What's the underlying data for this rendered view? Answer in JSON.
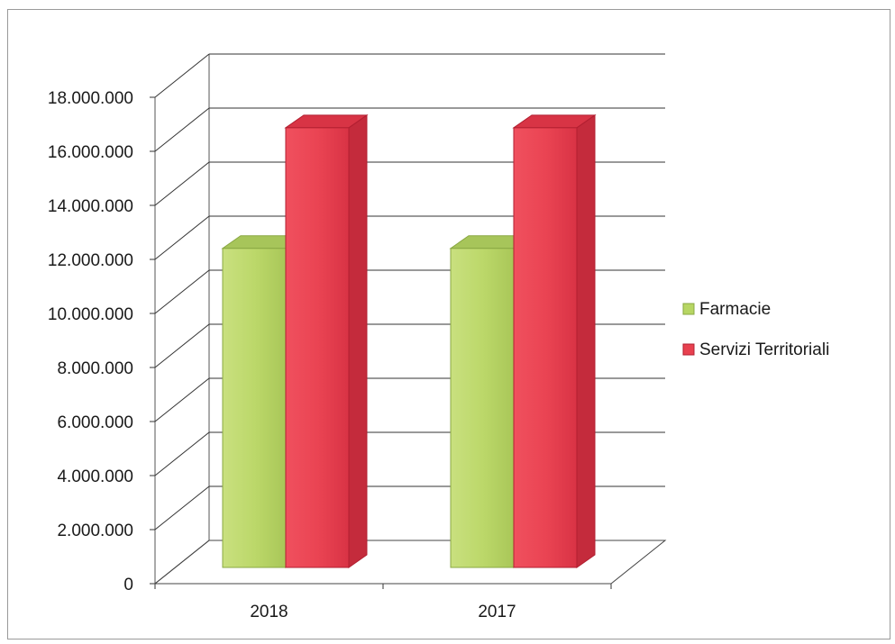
{
  "chart_data": {
    "type": "bar",
    "title": "",
    "xlabel": "",
    "ylabel": "",
    "categories": [
      "2018",
      "2017"
    ],
    "series": [
      {
        "name": "Farmacie",
        "values": [
          12300000,
          12300000
        ],
        "color": "#b7d663"
      },
      {
        "name": "Servizi Territoriali",
        "values": [
          16950000,
          16950000
        ],
        "color": "#e8414f"
      }
    ],
    "ylim": [
      0,
      18000000
    ],
    "yticks": [
      0,
      2000000,
      4000000,
      6000000,
      8000000,
      10000000,
      12000000,
      14000000,
      16000000,
      18000000
    ],
    "ytick_labels": [
      "0",
      "2.000.000",
      "4.000.000",
      "6.000.000",
      "8.000.000",
      "10.000.000",
      "12.000.000",
      "14.000.000",
      "16.000.000",
      "18.000.000"
    ],
    "grid": true,
    "legend_position": "right",
    "style": "3d-clustered-column"
  }
}
